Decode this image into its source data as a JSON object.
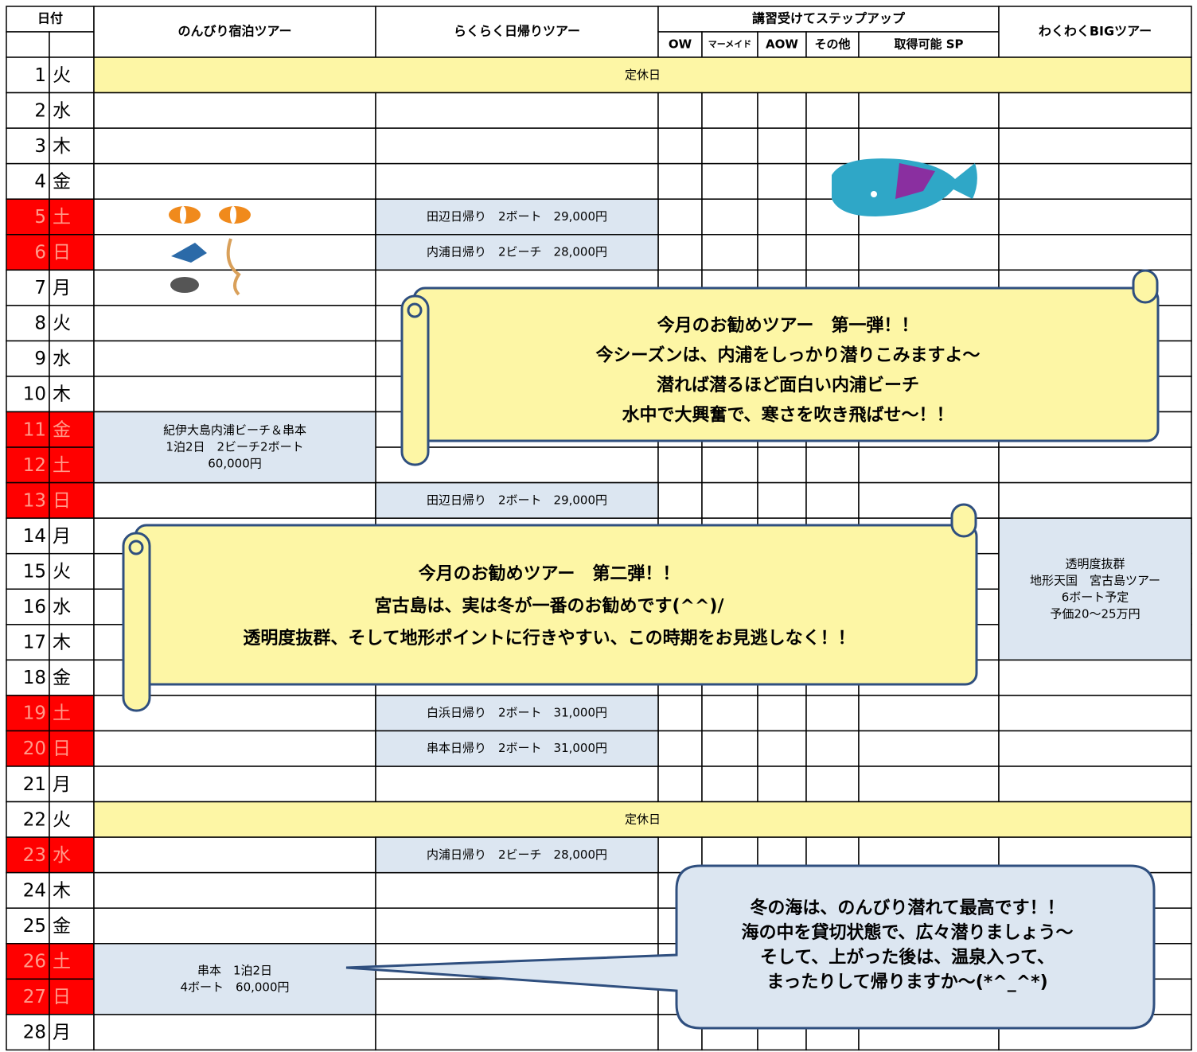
{
  "header": {
    "date": "日付",
    "stay": "のんびり宿泊ツアー",
    "day_trip": "らくらく日帰りツアー",
    "course": "講習受けてステップアップ",
    "course_columns": [
      "OW",
      "マーメイド",
      "AOW",
      "その他",
      "取得可能 SP"
    ],
    "big": "わくわくBIGツアー"
  },
  "days": [
    {
      "date": 1,
      "weekday": "火",
      "note": "定休日"
    },
    {
      "date": 2,
      "weekday": "水"
    },
    {
      "date": 3,
      "weekday": "木"
    },
    {
      "date": 4,
      "weekday": "金"
    },
    {
      "date": 5,
      "weekday": "土",
      "highlight": true
    },
    {
      "date": 6,
      "weekday": "日",
      "highlight": true
    },
    {
      "date": 7,
      "weekday": "月"
    },
    {
      "date": 8,
      "weekday": "火"
    },
    {
      "date": 9,
      "weekday": "水"
    },
    {
      "date": 10,
      "weekday": "木"
    },
    {
      "date": 11,
      "weekday": "金",
      "highlight": true
    },
    {
      "date": 12,
      "weekday": "土",
      "highlight": true
    },
    {
      "date": 13,
      "weekday": "日",
      "highlight": true
    },
    {
      "date": 14,
      "weekday": "月"
    },
    {
      "date": 15,
      "weekday": "火"
    },
    {
      "date": 16,
      "weekday": "水"
    },
    {
      "date": 17,
      "weekday": "木"
    },
    {
      "date": 18,
      "weekday": "金"
    },
    {
      "date": 19,
      "weekday": "土",
      "highlight": true
    },
    {
      "date": 20,
      "weekday": "日",
      "highlight": true
    },
    {
      "date": 21,
      "weekday": "月"
    },
    {
      "date": 22,
      "weekday": "火",
      "note": "定休日"
    },
    {
      "date": 23,
      "weekday": "水",
      "highlight": true
    },
    {
      "date": 24,
      "weekday": "木"
    },
    {
      "date": 25,
      "weekday": "金"
    },
    {
      "date": 26,
      "weekday": "土",
      "highlight": true
    },
    {
      "date": 27,
      "weekday": "日",
      "highlight": true
    },
    {
      "date": 28,
      "weekday": "月"
    }
  ],
  "tours": {
    "stay": [
      {
        "from": 11,
        "to": 12,
        "lines": [
          "紀伊大島内浦ビーチ＆串本",
          "1泊2日　2ビーチ2ボート",
          "60,000円"
        ]
      },
      {
        "from": 26,
        "to": 27,
        "lines": [
          "串本　1泊2日",
          "4ボート　60,000円"
        ]
      }
    ],
    "day_trip": [
      {
        "from": 5,
        "to": 5,
        "lines": [
          "田辺日帰り　2ボート　29,000円"
        ]
      },
      {
        "from": 6,
        "to": 6,
        "lines": [
          "内浦日帰り　2ビーチ　28,000円"
        ]
      },
      {
        "from": 13,
        "to": 13,
        "lines": [
          "田辺日帰り　2ボート　29,000円"
        ]
      },
      {
        "from": 19,
        "to": 19,
        "lines": [
          "白浜日帰り　2ボート　31,000円"
        ]
      },
      {
        "from": 20,
        "to": 20,
        "lines": [
          "串本日帰り　2ボート　31,000円"
        ]
      },
      {
        "from": 23,
        "to": 23,
        "lines": [
          "内浦日帰り　2ビーチ　28,000円"
        ]
      }
    ],
    "big": [
      {
        "from": 14,
        "to": 17,
        "lines": [
          "透明度抜群",
          "地形天国　宮古島ツアー",
          "6ボート予定",
          "予価20～25万円"
        ]
      }
    ]
  },
  "callouts": [
    {
      "lines": [
        "今月のお勧めツアー　第一弾！！",
        "今シーズンは、内浦をしっかり潜りこみますよ～",
        "潜れば潜るほど面白い内浦ビーチ",
        "水中で大興奮で、寒さを吹き飛ばせ～！！"
      ]
    },
    {
      "lines": [
        "今月のお勧めツアー　第二弾！！",
        "宮古島は、実は冬が一番のお勧めです(^^)/",
        "透明度抜群、そして地形ポイントに行きやすい、この時期をお見逃しなく！！"
      ]
    },
    {
      "lines": [
        "冬の海は、のんびり潜れて最高です！！",
        "海の中を貸切状態で、広々潜りましょう～",
        "そして、上がった後は、温泉入って、",
        "まったりして帰りますか～(*^_^*)"
      ]
    }
  ]
}
